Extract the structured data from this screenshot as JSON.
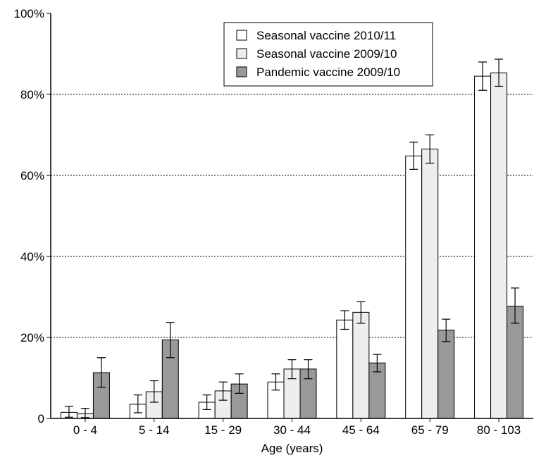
{
  "chart_data": {
    "type": "bar",
    "title": "",
    "xlabel": "Age (years)",
    "ylabel": "",
    "ylim": [
      0,
      100
    ],
    "yticks": [
      0,
      20,
      40,
      60,
      80,
      100
    ],
    "ytick_labels": [
      "0",
      "20%",
      "40%",
      "60%",
      "80%",
      "100%"
    ],
    "grid": "horizontal dotted",
    "legend_position": "top-center",
    "categories": [
      "0 - 4",
      "5 - 14",
      "15 - 29",
      "30 - 44",
      "45 - 64",
      "65 - 79",
      "80 - 103"
    ],
    "series": [
      {
        "name": "Seasonal vaccine 2010/11",
        "color": "#ffffff",
        "values": [
          1.5,
          3.5,
          4.0,
          9.0,
          24.3,
          64.8,
          84.5
        ],
        "error_low": [
          0.3,
          1.4,
          2.2,
          7.0,
          22.0,
          61.5,
          81.0
        ],
        "error_high": [
          3.0,
          5.8,
          5.8,
          11.0,
          26.6,
          68.2,
          88.0
        ]
      },
      {
        "name": "Seasonal vaccine 2009/10",
        "color": "#eeeeee",
        "values": [
          1.2,
          6.6,
          6.8,
          12.2,
          26.2,
          66.5,
          85.3
        ],
        "error_low": [
          0.2,
          4.0,
          4.5,
          9.8,
          23.5,
          63.0,
          82.0
        ],
        "error_high": [
          2.5,
          9.3,
          9.0,
          14.5,
          28.8,
          70.0,
          88.7
        ]
      },
      {
        "name": "Pandemic vaccine 2009/10",
        "color": "#999999",
        "values": [
          11.3,
          19.4,
          8.5,
          12.2,
          13.7,
          21.8,
          27.7
        ],
        "error_low": [
          7.7,
          15.0,
          6.2,
          9.8,
          11.5,
          19.0,
          23.5
        ],
        "error_high": [
          15.0,
          23.7,
          11.0,
          14.5,
          15.8,
          24.5,
          32.2
        ]
      }
    ]
  }
}
